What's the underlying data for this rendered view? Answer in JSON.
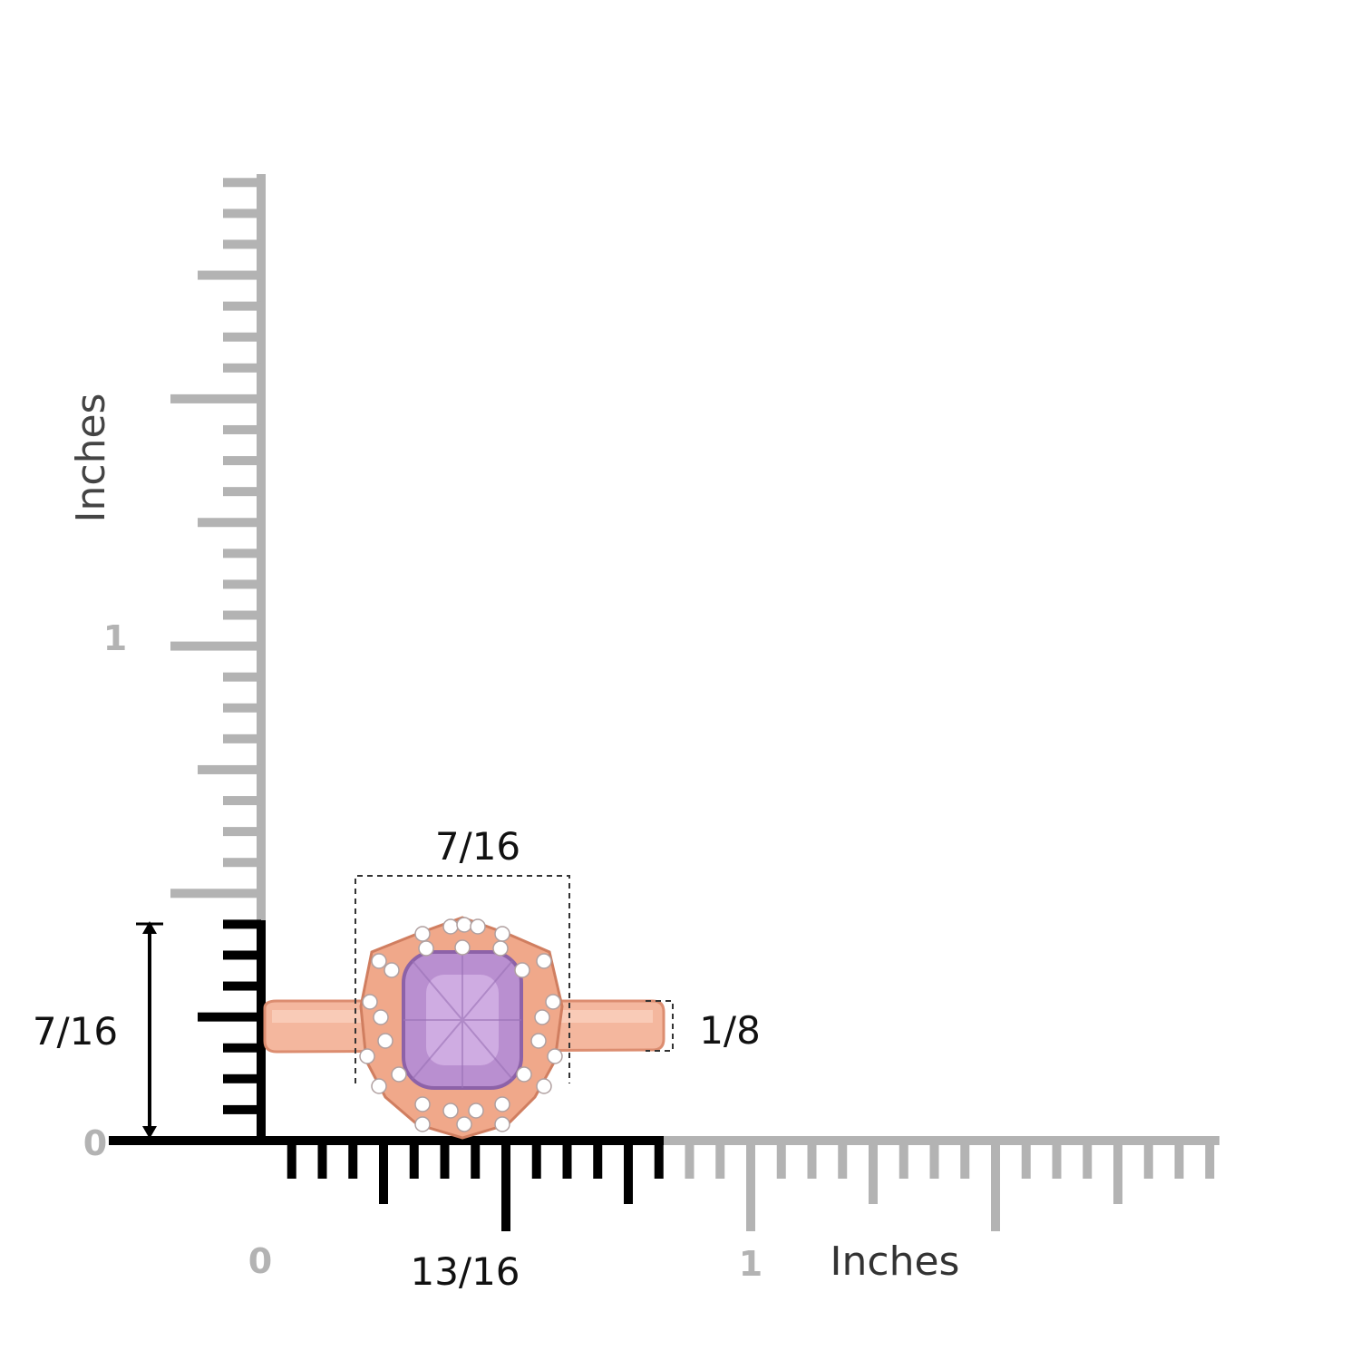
{
  "rulers": {
    "vertical": {
      "label": "Inches",
      "tick_labels": [
        "1",
        "0"
      ]
    },
    "horizontal": {
      "tick_labels": [
        "0",
        "1"
      ],
      "label": "Inches"
    }
  },
  "dimensions": {
    "top_width": "7/16",
    "height": "7/16",
    "band_width": "1/8",
    "length": "13/16"
  }
}
